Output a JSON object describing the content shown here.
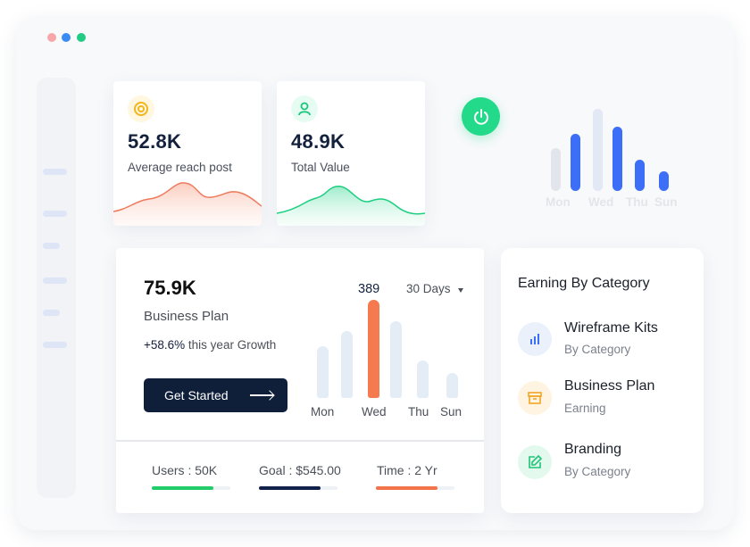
{
  "colors": {
    "window_dots": [
      "#f8a6a8",
      "#3b8cf2",
      "#22cc85"
    ],
    "accent_green": "#23d98a",
    "accent_orange": "#f57a50",
    "accent_blue": "#3d6ef7",
    "navy": "#0f1f3a"
  },
  "stats": [
    {
      "value": "52.8K",
      "label": "Average reach post",
      "icon": "target-icon"
    },
    {
      "value": "48.9K",
      "label": "Total Value",
      "icon": "user-icon"
    }
  ],
  "power_icon": "power-icon",
  "mini_chart": {
    "day_labels": [
      "Mon",
      "Wed",
      "Thu",
      "Sun"
    ],
    "values": [
      48,
      64,
      92,
      72,
      35,
      22
    ]
  },
  "business_plan": {
    "value": "75.9K",
    "label": "Business Plan",
    "growth_pct": "+58.6%",
    "growth_text": " this year Growth",
    "button_label": "Get Started",
    "period": "30 Days",
    "peak_label": "389",
    "day_labels": [
      "Mon",
      "Wed",
      "Thu",
      "Sun"
    ],
    "values": [
      58,
      75,
      110,
      86,
      42,
      28
    ],
    "peak_index": 2
  },
  "metrics": [
    {
      "label": "Users : 50K",
      "progress": 0.78,
      "color": "#22cc6a"
    },
    {
      "label": "Goal : $545.00",
      "progress": 0.78,
      "color": "#10214a"
    },
    {
      "label": "Time : 2 Yr",
      "progress": 0.78,
      "color": "#f2724a"
    }
  ],
  "earning": {
    "title": "Earning By Category",
    "items": [
      {
        "name": "Wireframe Kits",
        "sub": "By Category",
        "icon": "bar-chart-icon"
      },
      {
        "name": "Business Plan",
        "sub": "Earning",
        "icon": "archive-box-icon"
      },
      {
        "name": "Branding",
        "sub": "By Category",
        "icon": "edit-icon"
      }
    ]
  }
}
